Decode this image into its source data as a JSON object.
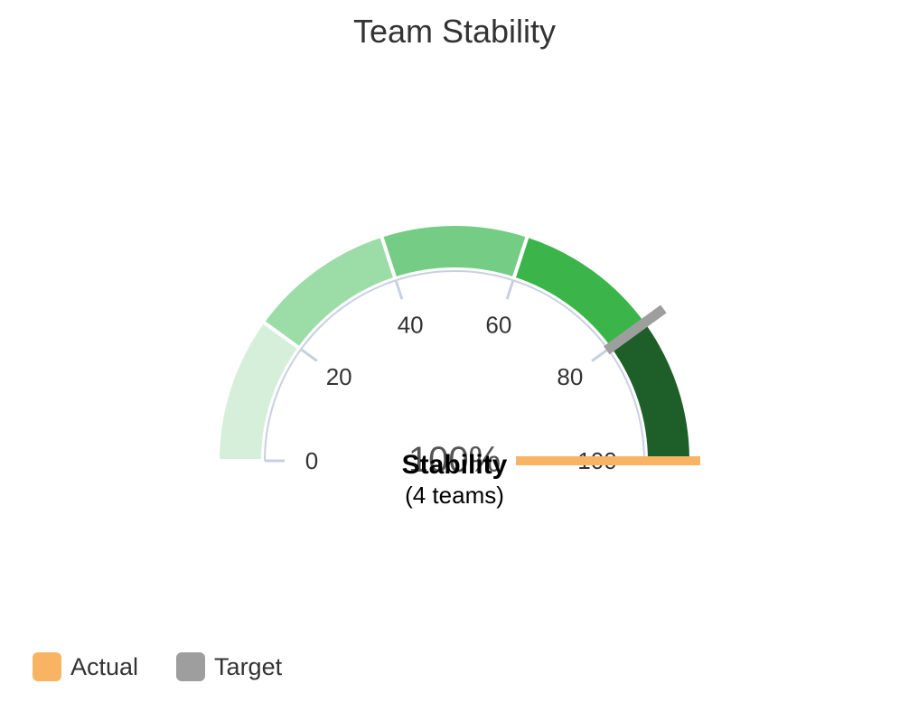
{
  "chart_data": {
    "type": "gauge",
    "title": "Team Stability",
    "min": 0,
    "max": 100,
    "ticks": [
      0,
      20,
      40,
      60,
      80,
      100
    ],
    "bands": [
      {
        "from": 0,
        "to": 20,
        "color": "#d6efdb"
      },
      {
        "from": 20,
        "to": 40,
        "color": "#9bdca7"
      },
      {
        "from": 40,
        "to": 60,
        "color": "#74cc85"
      },
      {
        "from": 60,
        "to": 80,
        "color": "#3bb54a"
      },
      {
        "from": 80,
        "to": 100,
        "color": "#1e5e28"
      }
    ],
    "actual": 100,
    "target": 80,
    "value_text": "100%",
    "center_label": "Stability",
    "center_sublabel": "(4 teams)",
    "legend": [
      {
        "name": "Actual",
        "color": "#f8b363"
      },
      {
        "name": "Target",
        "color": "#9e9e9e"
      }
    ],
    "legend_position": "bottom-left"
  },
  "colors": {
    "actual": "#f8b363",
    "target": "#9e9e9e",
    "axis": "#c8d0e0"
  }
}
